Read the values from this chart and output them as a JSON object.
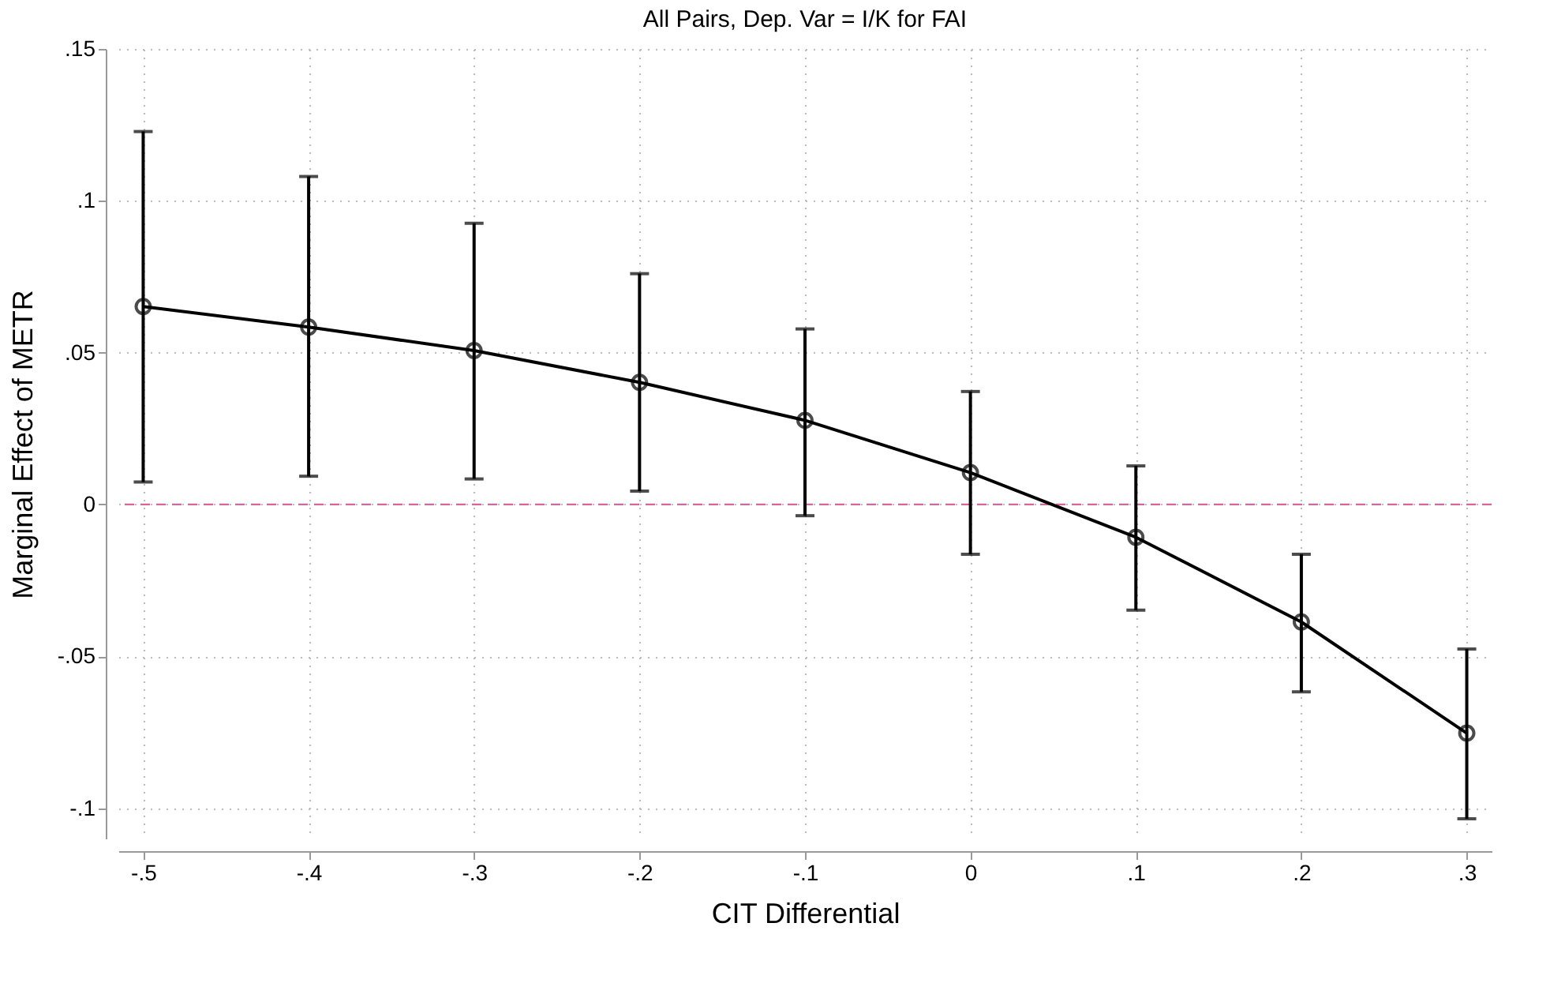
{
  "chart_data": {
    "type": "line",
    "title": "All Pairs, Dep. Var = I/K for FAI",
    "xlabel": "CIT Differential",
    "ylabel": "Marginal Effect of METR",
    "x": [
      -0.5,
      -0.4,
      -0.3,
      -0.2,
      -0.1,
      0,
      0.1,
      0.2,
      0.3
    ],
    "series": [
      {
        "color": "#000000",
        "values": [
          0.0652,
          0.0584,
          0.0507,
          0.0402,
          0.0277,
          0.0105,
          -0.0108,
          -0.0387,
          -0.0753
        ],
        "errors": [
          [
            0.0074,
            0.1228
          ],
          [
            0.0093,
            0.108
          ],
          [
            0.0084,
            0.0926
          ],
          [
            0.0044,
            0.076
          ],
          [
            -0.0037,
            0.0578
          ],
          [
            -0.0164,
            0.0372
          ],
          [
            -0.0348,
            0.0127
          ],
          [
            -0.0617,
            -0.0164
          ],
          [
            -0.1035,
            -0.0476
          ]
        ]
      }
    ],
    "xlim": [
      -0.515,
      0.315
    ],
    "ylim": [
      -0.11,
      0.15
    ],
    "xticks": [
      {
        "value": -0.5,
        "label": "-.5"
      },
      {
        "value": -0.4,
        "label": "-.4"
      },
      {
        "value": -0.3,
        "label": "-.3"
      },
      {
        "value": -0.2,
        "label": "-.2"
      },
      {
        "value": -0.1,
        "label": "-.1"
      },
      0,
      {
        "value": 0.1,
        "label": ".1"
      },
      {
        "value": 0.2,
        "label": ".2"
      },
      {
        "value": 0.3,
        "label": ".3"
      }
    ],
    "yticks": [
      {
        "value": -0.1,
        "label": "-.1"
      },
      {
        "value": -0.05,
        "label": "-.05"
      },
      0,
      {
        "value": 0.05,
        "label": ".05"
      },
      {
        "value": 0.1,
        "label": ".1"
      },
      {
        "value": 0.15,
        "label": ".15"
      }
    ],
    "ref_lines": [
      {
        "axis": "y",
        "value": 0,
        "color": "#e0609a",
        "line_style": "dashed"
      }
    ],
    "grid": true,
    "marker": "circle",
    "line_style": "solid"
  }
}
